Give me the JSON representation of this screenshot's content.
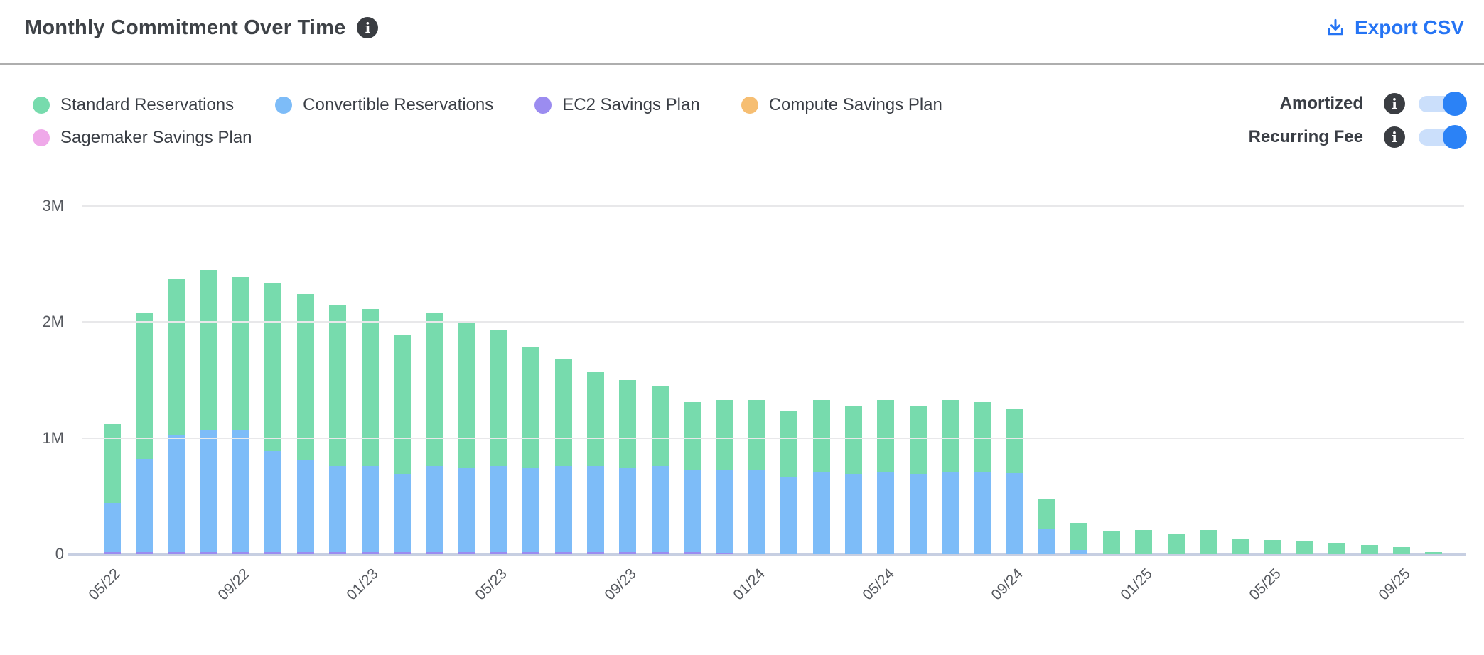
{
  "header": {
    "title": "Monthly Commitment Over Time",
    "info_icon": "info-icon",
    "export_label": "Export CSV",
    "export_icon": "download-icon",
    "accent_blue": "#2574f4"
  },
  "legend": [
    {
      "label": "Standard Reservations",
      "color": "#77dbad"
    },
    {
      "label": "Convertible Reservations",
      "color": "#7dbcf8"
    },
    {
      "label": "EC2 Savings Plan",
      "color": "#9b8cf0"
    },
    {
      "label": "Compute Savings Plan",
      "color": "#f6be72"
    },
    {
      "label": "Sagemaker Savings Plan",
      "color": "#efa9e9"
    }
  ],
  "toggles": [
    {
      "label": "Amortized",
      "state": "on"
    },
    {
      "label": "Recurring Fee",
      "state": "on"
    }
  ],
  "toggle_colors": {
    "track": "#cbdffb",
    "knob": "#2b82f6"
  },
  "chart_data": {
    "type": "bar",
    "stacked": true,
    "title": "Monthly Commitment Over Time",
    "unit": "M (USD)",
    "ylim": [
      0,
      3
    ],
    "yticks": [
      {
        "v": 0,
        "label": "0"
      },
      {
        "v": 1,
        "label": "1M"
      },
      {
        "v": 2,
        "label": "2M"
      },
      {
        "v": 3,
        "label": "3M"
      }
    ],
    "grid": "horizontal",
    "legend_position": "top-left",
    "xtick_every": 4,
    "visible_xticks": [
      "05/22",
      "09/22",
      "01/23",
      "05/23",
      "09/23",
      "01/24",
      "05/24",
      "09/24",
      "01/25",
      "05/25",
      "09/25"
    ],
    "categories": [
      "05/22",
      "06/22",
      "07/22",
      "08/22",
      "09/22",
      "10/22",
      "11/22",
      "12/22",
      "01/23",
      "02/23",
      "03/23",
      "04/23",
      "05/23",
      "06/23",
      "07/23",
      "08/23",
      "09/23",
      "10/23",
      "11/23",
      "12/23",
      "01/24",
      "02/24",
      "03/24",
      "04/24",
      "05/24",
      "06/24",
      "07/24",
      "08/24",
      "09/24",
      "10/24",
      "11/24",
      "12/24",
      "01/25",
      "02/25",
      "03/25",
      "04/25",
      "05/25",
      "06/25",
      "07/25",
      "08/25",
      "09/25",
      "10/25"
    ],
    "series": [
      {
        "name": "Standard Reservations",
        "color": "#77dbad",
        "values": [
          0.68,
          1.26,
          1.35,
          1.38,
          1.32,
          1.44,
          1.43,
          1.39,
          1.35,
          1.2,
          1.32,
          1.26,
          1.17,
          1.05,
          0.92,
          0.81,
          0.76,
          0.69,
          0.59,
          0.6,
          0.61,
          0.58,
          0.62,
          0.59,
          0.62,
          0.59,
          0.62,
          0.6,
          0.55,
          0.26,
          0.23,
          0.2,
          0.21,
          0.18,
          0.21,
          0.13,
          0.12,
          0.11,
          0.1,
          0.08,
          0.06,
          0.02
        ]
      },
      {
        "name": "Convertible Reservations",
        "color": "#7dbcf8",
        "values": [
          0.42,
          0.8,
          1.0,
          1.05,
          1.05,
          0.87,
          0.79,
          0.74,
          0.74,
          0.67,
          0.74,
          0.72,
          0.74,
          0.72,
          0.74,
          0.74,
          0.72,
          0.74,
          0.7,
          0.72,
          0.72,
          0.66,
          0.71,
          0.69,
          0.71,
          0.69,
          0.71,
          0.71,
          0.7,
          0.22,
          0.04,
          0,
          0,
          0,
          0,
          0,
          0,
          0,
          0,
          0,
          0,
          0
        ]
      },
      {
        "name": "EC2 Savings Plan",
        "color": "#9b8cf0",
        "values": [
          0.02,
          0.02,
          0.02,
          0.02,
          0.02,
          0.02,
          0.02,
          0.02,
          0.02,
          0.02,
          0.02,
          0.02,
          0.02,
          0.02,
          0.02,
          0.02,
          0.02,
          0.02,
          0.02,
          0.01,
          0,
          0,
          0,
          0,
          0,
          0,
          0,
          0,
          0,
          0,
          0,
          0,
          0,
          0,
          0,
          0,
          0,
          0,
          0,
          0,
          0,
          0
        ]
      },
      {
        "name": "Compute Savings Plan",
        "color": "#f6be72",
        "values": [
          0,
          0,
          0,
          0,
          0,
          0,
          0,
          0,
          0,
          0,
          0,
          0,
          0,
          0,
          0,
          0,
          0,
          0,
          0,
          0,
          0,
          0,
          0,
          0,
          0,
          0,
          0,
          0,
          0,
          0,
          0,
          0,
          0,
          0,
          0,
          0,
          0,
          0,
          0,
          0,
          0,
          0
        ]
      },
      {
        "name": "Sagemaker Savings Plan",
        "color": "#efa9e9",
        "values": [
          0,
          0,
          0,
          0,
          0,
          0,
          0,
          0,
          0,
          0,
          0,
          0,
          0,
          0,
          0,
          0,
          0,
          0,
          0,
          0,
          0,
          0,
          0,
          0,
          0,
          0,
          0,
          0,
          0,
          0,
          0,
          0,
          0,
          0,
          0,
          0,
          0,
          0,
          0,
          0,
          0,
          0
        ]
      }
    ]
  }
}
